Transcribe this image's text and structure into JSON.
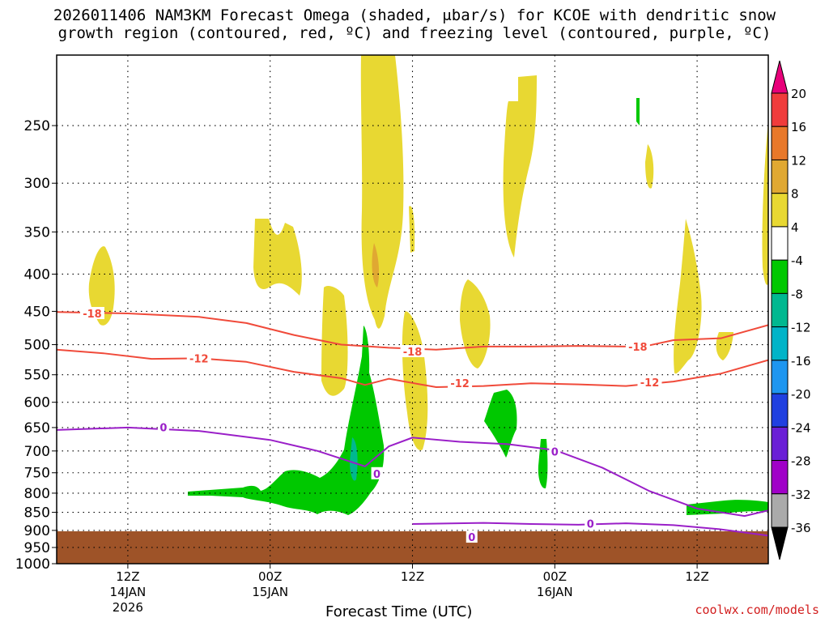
{
  "title_line1": "2026011406 NAM3KM Forecast Omega (shaded, μbar/s) for KCOE with dendritic snow",
  "title_line2": "growth region (contoured, red, ºC) and freezing level (contoured, purple, ºC)",
  "credit": "coolwx.com/models",
  "chart_data": {
    "type": "contour",
    "xlabel": "Forecast Time (UTC)",
    "ylabel": "",
    "y_axis": {
      "scale": "pressure",
      "reversed": true,
      "ticks": [
        250,
        300,
        350,
        400,
        450,
        500,
        550,
        600,
        650,
        700,
        750,
        800,
        850,
        900,
        950,
        1000
      ],
      "range": [
        1000,
        200
      ]
    },
    "x_axis": {
      "range_hours_from_init": [
        6,
        66
      ],
      "ticks": [
        {
          "hour": 12,
          "label": "12Z",
          "sub": "14JAN",
          "sub2": "2026"
        },
        {
          "hour": 24,
          "label": "00Z",
          "sub": "15JAN",
          "sub2": ""
        },
        {
          "hour": 36,
          "label": "12Z",
          "sub": "",
          "sub2": ""
        },
        {
          "hour": 48,
          "label": "00Z",
          "sub": "16JAN",
          "sub2": ""
        },
        {
          "hour": 60,
          "label": "12Z",
          "sub": "",
          "sub2": ""
        }
      ]
    },
    "grid": true,
    "colorbar": {
      "labels": [
        "20",
        "16",
        "12",
        "8",
        "4",
        "-4",
        "-8",
        "-12",
        "-16",
        "-20",
        "-24",
        "-28",
        "-32",
        "-36"
      ],
      "colors": [
        "#e8007a",
        "#f03c3c",
        "#e8782a",
        "#e0a832",
        "#e8d832",
        "#ffffff",
        "#00c800",
        "#00b890",
        "#00b4c8",
        "#1e96f0",
        "#2040e0",
        "#6a1fd6",
        "#a000c8",
        "#aaaaaa",
        "#000000"
      ]
    },
    "contours": {
      "red_minus18": {
        "label": "-18",
        "color": "#f04a3a",
        "points": [
          [
            6,
            451
          ],
          [
            12,
            453
          ],
          [
            18,
            458
          ],
          [
            22,
            467
          ],
          [
            26,
            485
          ],
          [
            30,
            500
          ],
          [
            34,
            505
          ],
          [
            38,
            508
          ],
          [
            42,
            503
          ],
          [
            46,
            503
          ],
          [
            50,
            502
          ],
          [
            54,
            503
          ],
          [
            56,
            501
          ],
          [
            58,
            493
          ],
          [
            62,
            490
          ],
          [
            66,
            470
          ]
        ],
        "label_positions": [
          [
            9,
            453
          ],
          [
            36,
            511
          ],
          [
            55,
            503
          ]
        ]
      },
      "red_minus12": {
        "label": "-12",
        "color": "#f04a3a",
        "points": [
          [
            6,
            508
          ],
          [
            10,
            514
          ],
          [
            14,
            523
          ],
          [
            18,
            522
          ],
          [
            22,
            528
          ],
          [
            26,
            545
          ],
          [
            30,
            556
          ],
          [
            32,
            568
          ],
          [
            34,
            557
          ],
          [
            38,
            572
          ],
          [
            42,
            570
          ],
          [
            46,
            565
          ],
          [
            50,
            567
          ],
          [
            54,
            570
          ],
          [
            58,
            562
          ],
          [
            62,
            548
          ],
          [
            66,
            525
          ]
        ],
        "label_positions": [
          [
            18,
            522
          ],
          [
            40,
            565
          ],
          [
            56,
            563
          ]
        ]
      },
      "purple_0_upper": {
        "label": "0",
        "color": "#9a1fc8",
        "points": [
          [
            6,
            655
          ],
          [
            12,
            650
          ],
          [
            18,
            657
          ],
          [
            24,
            676
          ],
          [
            28,
            700
          ],
          [
            32,
            735
          ],
          [
            34,
            690
          ],
          [
            36,
            671
          ],
          [
            40,
            680
          ],
          [
            44,
            685
          ],
          [
            48,
            698
          ],
          [
            52,
            738
          ],
          [
            56,
            795
          ],
          [
            60,
            840
          ],
          [
            64,
            860
          ],
          [
            66,
            845
          ]
        ],
        "label_positions": [
          [
            15,
            649
          ],
          [
            33,
            752
          ],
          [
            48,
            701
          ]
        ]
      },
      "purple_0_lower": {
        "label": "0",
        "color": "#9a1fc8",
        "points": [
          [
            36,
            882
          ],
          [
            42,
            879
          ],
          [
            46,
            882
          ],
          [
            50,
            884
          ],
          [
            54,
            880
          ],
          [
            58,
            885
          ],
          [
            62,
            897
          ],
          [
            66,
            915
          ]
        ],
        "label_positions": [
          [
            51,
            881
          ],
          [
            41,
            919
          ]
        ]
      }
    },
    "omega_regions": [
      {
        "range": "4 to 8",
        "color": "#e8d832"
      },
      {
        "range": "8 to 12",
        "color": "#e0a832"
      },
      {
        "range": "-4 to -8",
        "color": "#00c800"
      },
      {
        "range": "-8 to -12",
        "color": "#00b890"
      }
    ]
  }
}
